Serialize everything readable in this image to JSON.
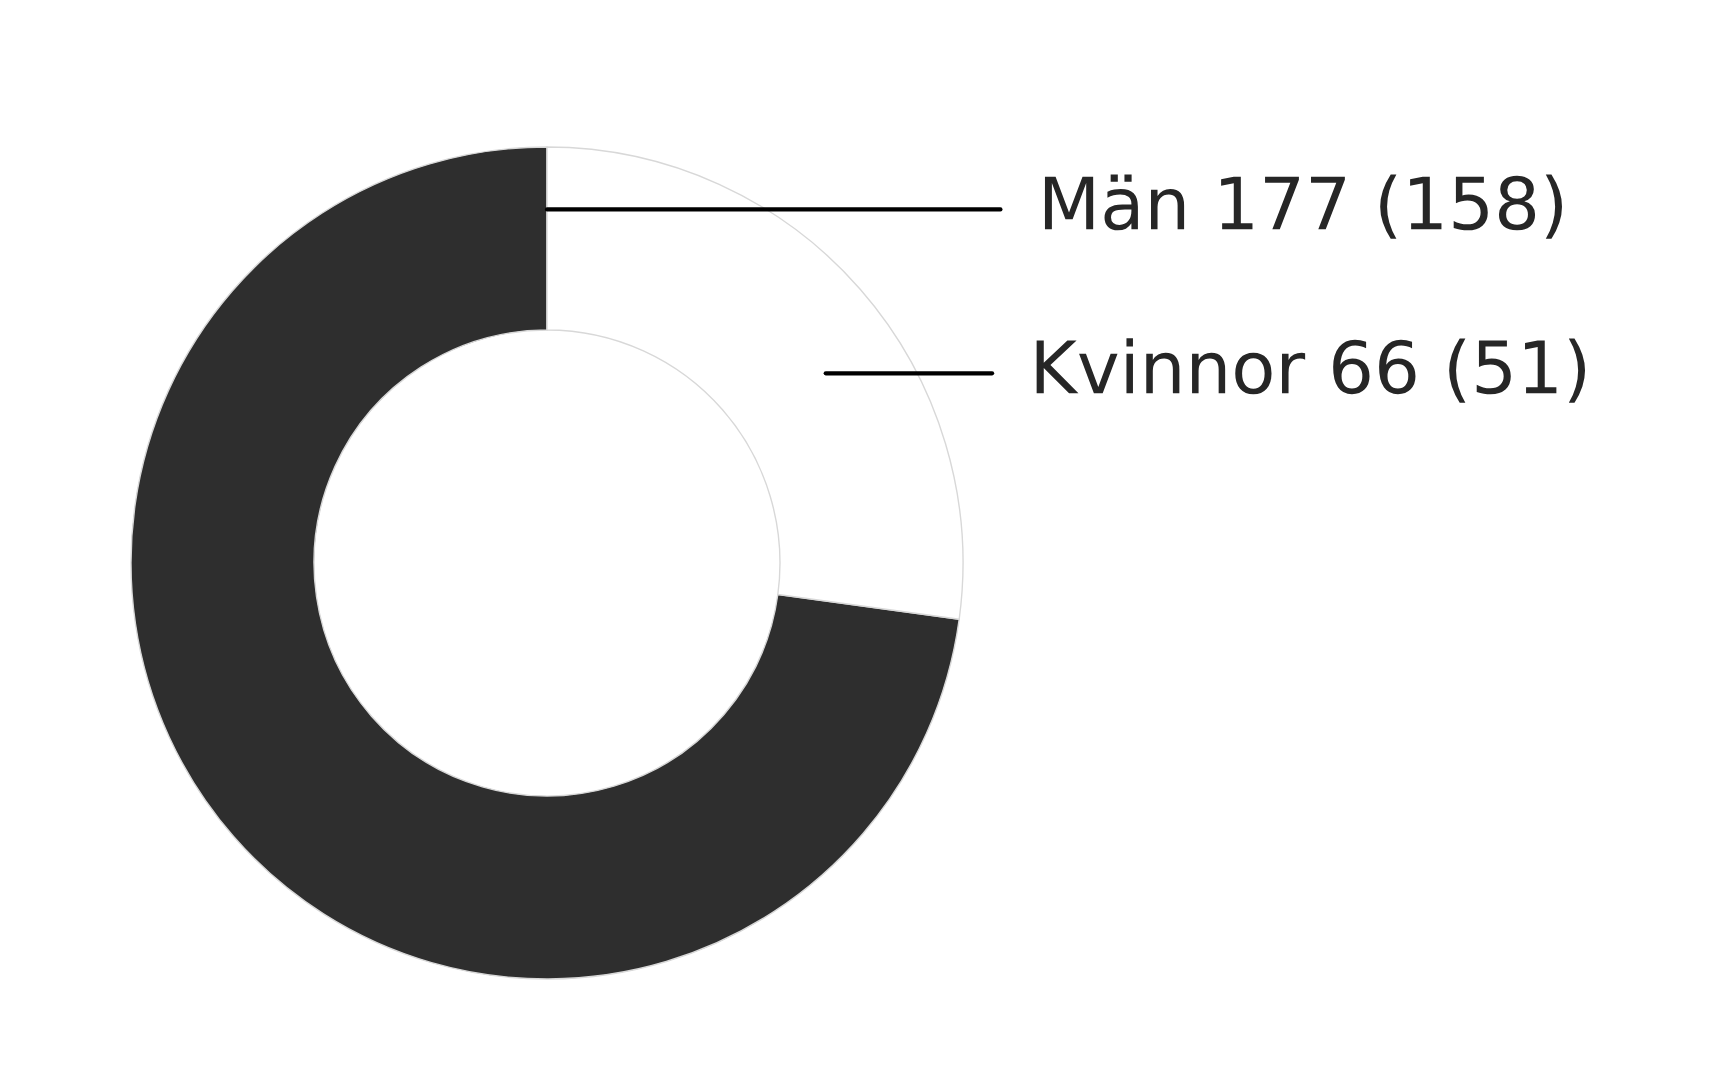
{
  "chart_data": {
    "type": "donut",
    "categories": [
      "Män",
      "Kvinnor"
    ],
    "values": [
      177,
      66
    ],
    "value_labels": [
      "177 (158)",
      "66 (51)"
    ],
    "colors": [
      "#2e2e2e",
      "#ffffff"
    ],
    "legend": false
  }
}
